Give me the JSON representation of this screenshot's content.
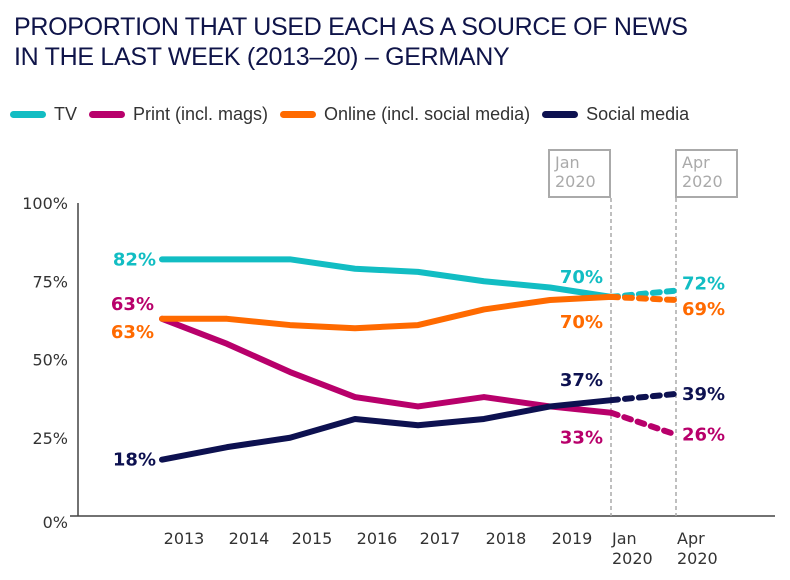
{
  "chart_data": {
    "type": "line",
    "title_lines": [
      "PROPORTION THAT USED EACH AS A SOURCE OF NEWS",
      "IN THE LAST WEEK (2013–20) – GERMANY"
    ],
    "xlabel": "",
    "ylabel": "",
    "categories": [
      "2013",
      "2014",
      "2015",
      "2016",
      "2017",
      "2018",
      "2019",
      "Jan 2020",
      "Apr 2020"
    ],
    "category_labels": [
      [
        "2013"
      ],
      [
        "2014"
      ],
      [
        "2015"
      ],
      [
        "2016"
      ],
      [
        "2017"
      ],
      [
        "2018"
      ],
      [
        "2019"
      ],
      [
        "Jan",
        "2020"
      ],
      [
        "Apr",
        "2020"
      ]
    ],
    "ylim": [
      0,
      100
    ],
    "yticks": [
      0,
      25,
      50,
      75,
      100
    ],
    "ytick_labels": [
      "0%",
      "25%",
      "50%",
      "75%",
      "100%"
    ],
    "grid": false,
    "legend_position": "top",
    "dashed_from_index": 7,
    "markers": [
      {
        "category_index": 7,
        "label": [
          "Jan",
          "2020"
        ]
      },
      {
        "category_index": 8,
        "label": [
          "Apr",
          "2020"
        ]
      }
    ],
    "series": [
      {
        "name": "TV",
        "color": "#12bdc3",
        "values": [
          82,
          82,
          82,
          79,
          78,
          75,
          73,
          70,
          72
        ],
        "labels": [
          {
            "index": 0,
            "text": "82%",
            "side": "left"
          },
          {
            "index": 7,
            "text": "70%",
            "side": "above-left"
          },
          {
            "index": 8,
            "text": "72%",
            "side": "right-up"
          }
        ]
      },
      {
        "name": "Print (incl. mags)",
        "color": "#b8006b",
        "values": [
          63,
          55,
          46,
          38,
          35,
          38,
          35,
          33,
          26
        ],
        "labels": [
          {
            "index": 0,
            "text": "63%",
            "side": "left-up"
          },
          {
            "index": 7,
            "text": "33%",
            "side": "below-left"
          },
          {
            "index": 8,
            "text": "26%",
            "side": "right"
          }
        ]
      },
      {
        "name": "Online (incl. social media)",
        "color": "#ff6a00",
        "values": [
          63,
          63,
          61,
          60,
          61,
          66,
          69,
          70,
          69
        ],
        "labels": [
          {
            "index": 0,
            "text": "63%",
            "side": "left-down"
          },
          {
            "index": 7,
            "text": "70%",
            "side": "below-left"
          },
          {
            "index": 8,
            "text": "69%",
            "side": "right-down"
          }
        ]
      },
      {
        "name": "Social media",
        "color": "#0d1150",
        "values": [
          18,
          22,
          25,
          31,
          29,
          31,
          35,
          37,
          39
        ],
        "labels": [
          {
            "index": 0,
            "text": "18%",
            "side": "left"
          },
          {
            "index": 7,
            "text": "37%",
            "side": "above-left"
          },
          {
            "index": 8,
            "text": "39%",
            "side": "right"
          }
        ]
      }
    ]
  }
}
